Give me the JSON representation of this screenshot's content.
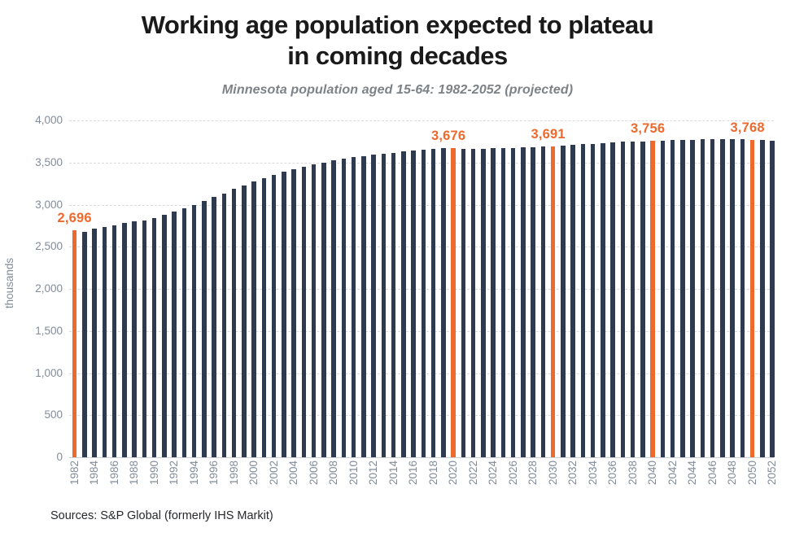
{
  "header": {
    "title_line1": "Working age population expected to plateau",
    "title_line2": "in coming decades",
    "subtitle": "Minnesota population aged 15-64: 1982-2052 (projected)"
  },
  "y_axis": {
    "title": "thousands"
  },
  "source": {
    "text": "Sources: S&P Global (formerly IHS Markit)"
  },
  "chart_data": {
    "type": "bar",
    "title": "Working age population expected to plateau in coming decades",
    "subtitle": "Minnesota population aged 15-64: 1982-2052 (projected)",
    "xlabel": "",
    "ylabel": "thousands",
    "ylim": [
      0,
      4000
    ],
    "ytick_interval": 500,
    "grid": "horizontal-dashed",
    "legend": "none",
    "x": [
      1982,
      1983,
      1984,
      1985,
      1986,
      1987,
      1988,
      1989,
      1990,
      1991,
      1992,
      1993,
      1994,
      1995,
      1996,
      1997,
      1998,
      1999,
      2000,
      2001,
      2002,
      2003,
      2004,
      2005,
      2006,
      2007,
      2008,
      2009,
      2010,
      2011,
      2012,
      2013,
      2014,
      2015,
      2016,
      2017,
      2018,
      2019,
      2020,
      2021,
      2022,
      2023,
      2024,
      2025,
      2026,
      2027,
      2028,
      2029,
      2030,
      2031,
      2032,
      2033,
      2034,
      2035,
      2036,
      2037,
      2038,
      2039,
      2040,
      2041,
      2042,
      2043,
      2044,
      2045,
      2046,
      2047,
      2048,
      2049,
      2050,
      2051,
      2052
    ],
    "values": [
      2696,
      2680,
      2712,
      2735,
      2758,
      2782,
      2800,
      2815,
      2845,
      2875,
      2914,
      2955,
      3000,
      3044,
      3090,
      3135,
      3185,
      3227,
      3272,
      3312,
      3352,
      3390,
      3420,
      3450,
      3475,
      3500,
      3522,
      3542,
      3562,
      3578,
      3590,
      3603,
      3617,
      3632,
      3644,
      3652,
      3661,
      3669,
      3676,
      3663,
      3660,
      3663,
      3667,
      3671,
      3676,
      3680,
      3684,
      3688,
      3691,
      3700,
      3708,
      3716,
      3724,
      3731,
      3738,
      3744,
      3749,
      3753,
      3756,
      3761,
      3765,
      3768,
      3771,
      3773,
      3775,
      3777,
      3778,
      3778,
      3768,
      3765,
      3760
    ],
    "xtick_labeled_years": [
      1982,
      1984,
      1986,
      1988,
      1990,
      1992,
      1994,
      1996,
      1998,
      2000,
      2002,
      2004,
      2006,
      2008,
      2010,
      2012,
      2014,
      2016,
      2018,
      2020,
      2022,
      2024,
      2026,
      2028,
      2030,
      2032,
      2034,
      2036,
      2038,
      2040,
      2042,
      2044,
      2046,
      2048,
      2050,
      2052
    ],
    "highlighted": [
      {
        "year": 1982,
        "value": 2696,
        "label": "2,696"
      },
      {
        "year": 2020,
        "value": 3676,
        "label": "3,676"
      },
      {
        "year": 2030,
        "value": 3691,
        "label": "3,691"
      },
      {
        "year": 2040,
        "value": 3756,
        "label": "3,756"
      },
      {
        "year": 2050,
        "value": 3768,
        "label": "3,768"
      }
    ],
    "colors": {
      "bar": "#2e3a50",
      "highlight": "#ed6a2f",
      "grid": "#d9d9d9",
      "axis_text": "#828c99",
      "title": "#1a1a1a",
      "subtitle": "#7d8287",
      "source": "#26282c"
    }
  }
}
